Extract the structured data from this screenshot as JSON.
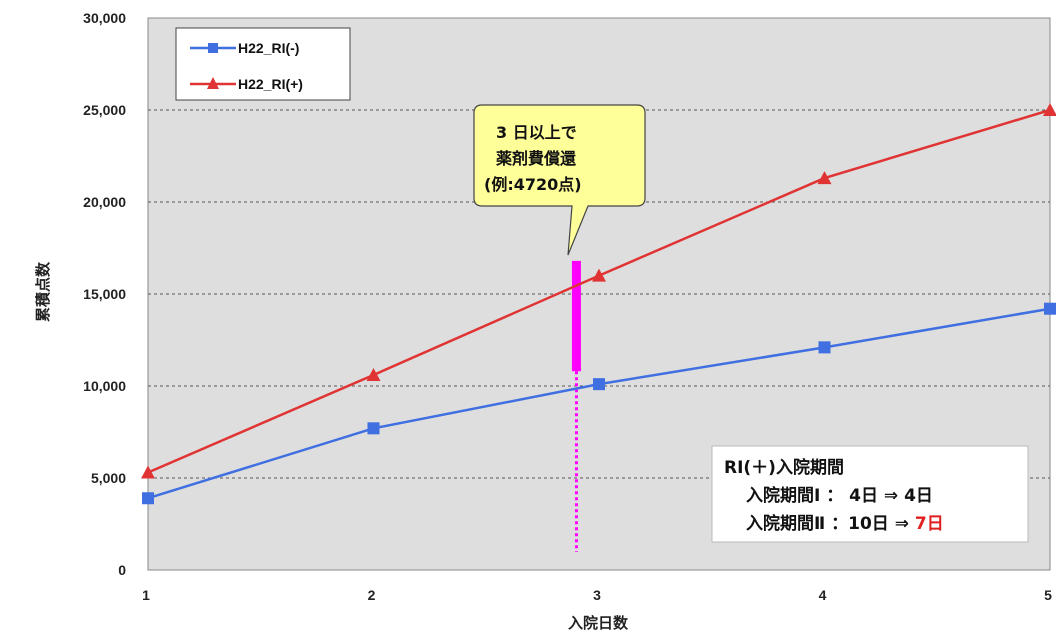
{
  "chart_data": {
    "type": "line",
    "xlabel": "入院日数",
    "ylabel": "累積点数",
    "x": [
      1,
      2,
      3,
      4,
      5
    ],
    "x_tick_labels": [
      "1",
      "2",
      "3",
      "4",
      "5"
    ],
    "ylim": [
      0,
      30000
    ],
    "y_ticks": [
      0,
      5000,
      10000,
      15000,
      20000,
      25000,
      30000
    ],
    "y_tick_labels": [
      "0",
      "5,000",
      "10,000",
      "15,000",
      "20,000",
      "25,000",
      "30,000"
    ],
    "grid": true,
    "legend_position": "top-left",
    "series": [
      {
        "name": "H22_RI(-)",
        "color": "#3f6fe0",
        "marker": "square",
        "values": [
          3900,
          7700,
          10100,
          12100,
          14200
        ]
      },
      {
        "name": "H22_RI(+)",
        "color": "#e03434",
        "marker": "triangle",
        "values": [
          5300,
          10600,
          16000,
          21300,
          25000
        ]
      }
    ],
    "annotations": {
      "callout_lines": [
        "3 日以上で",
        "薬剤費償還",
        "(例:4720点)"
      ],
      "marker_x": 2.9,
      "bar_range": [
        10800,
        16800
      ],
      "bar_color": "#ff00ff",
      "dotted_range": [
        0,
        10800
      ],
      "info_box": {
        "title": "RI(＋)入院期間",
        "row1": "入院期間Ⅰ ： 4日 ⇒ 4日",
        "row2_prefix": "入院期間Ⅱ ：10日 ⇒ ",
        "row2_highlight": "7日",
        "highlight_color": "#e02020"
      }
    }
  }
}
